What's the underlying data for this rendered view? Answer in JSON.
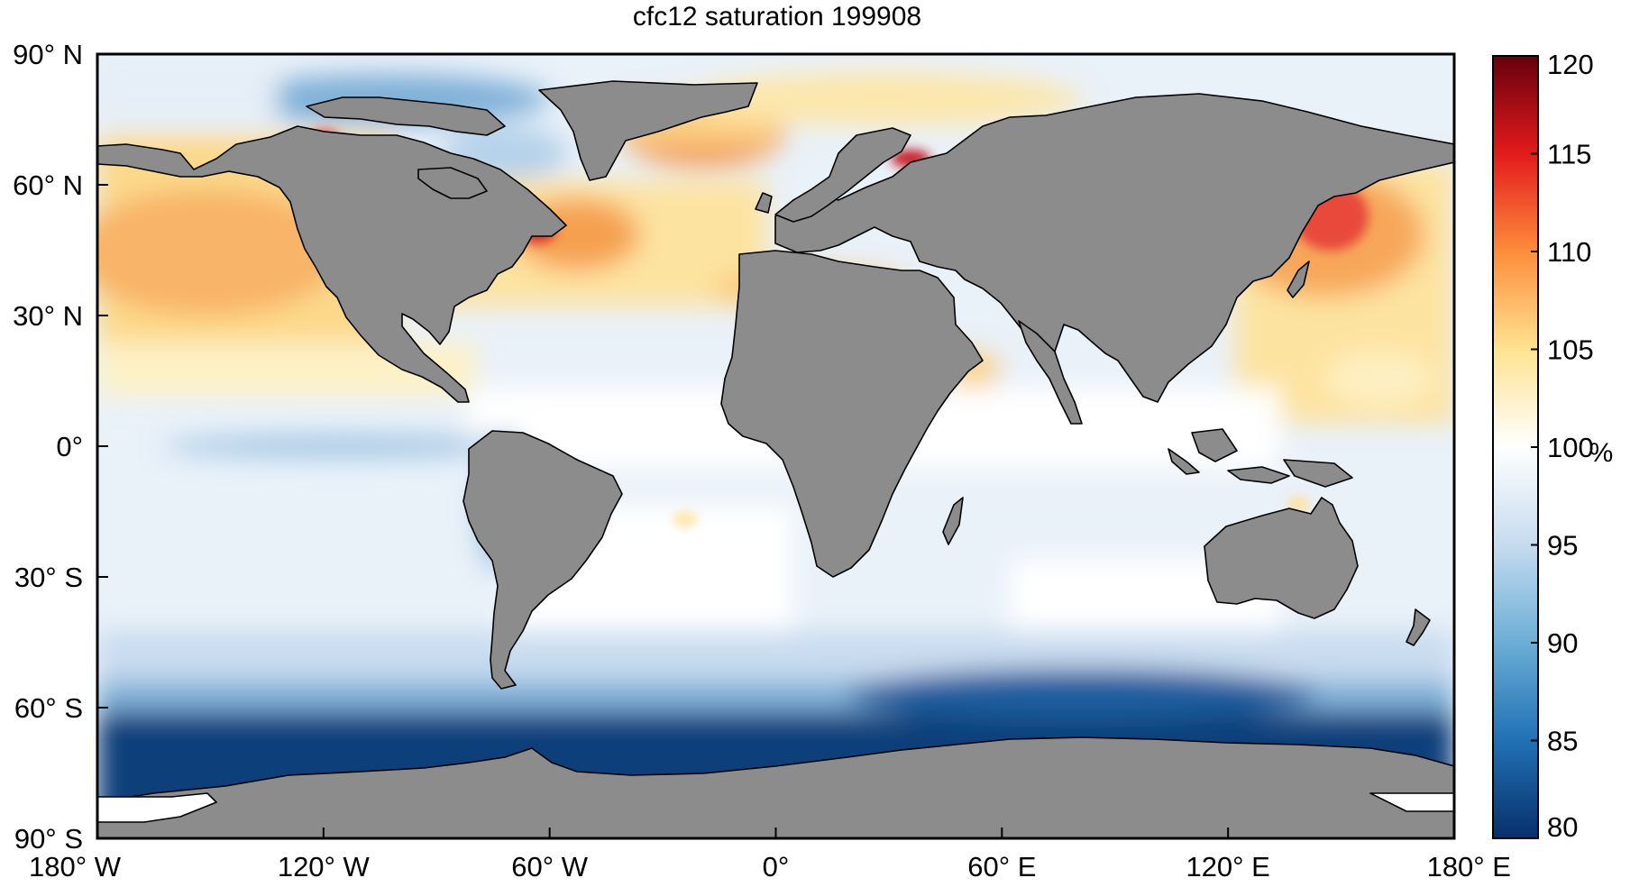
{
  "map": {
    "title": "cfc12 saturation 199908",
    "projection": "equirectangular",
    "lon_range": [
      -180,
      180
    ],
    "lat_range": [
      -90,
      90
    ],
    "land_color": "#8c8c8c",
    "coastline_color": "#000000",
    "lon_ticks": [
      {
        "value": -180,
        "label": "180° W"
      },
      {
        "value": -120,
        "label": "120° W"
      },
      {
        "value": -60,
        "label": "60° W"
      },
      {
        "value": 0,
        "label": "0°"
      },
      {
        "value": 60,
        "label": "60° E"
      },
      {
        "value": 120,
        "label": "120° E"
      },
      {
        "value": 180,
        "label": "180° E"
      }
    ],
    "lat_ticks": [
      {
        "value": 90,
        "label": "90° N"
      },
      {
        "value": 60,
        "label": "60° N"
      },
      {
        "value": 30,
        "label": "30° N"
      },
      {
        "value": 0,
        "label": "0°"
      },
      {
        "value": -30,
        "label": "30° S"
      },
      {
        "value": -60,
        "label": "60° S"
      },
      {
        "value": -90,
        "label": "90° S"
      }
    ]
  },
  "colorbar": {
    "unit": "%",
    "min": 80,
    "max": 120,
    "ticks": [
      "80",
      "85",
      "90",
      "95",
      "100",
      "105",
      "110",
      "115",
      "120"
    ],
    "colors": [
      "#08306b",
      "#2171b5",
      "#6baed6",
      "#c6dbef",
      "#ffffff",
      "#fee391",
      "#fd8d3c",
      "#e31a1c",
      "#67000d"
    ]
  }
}
